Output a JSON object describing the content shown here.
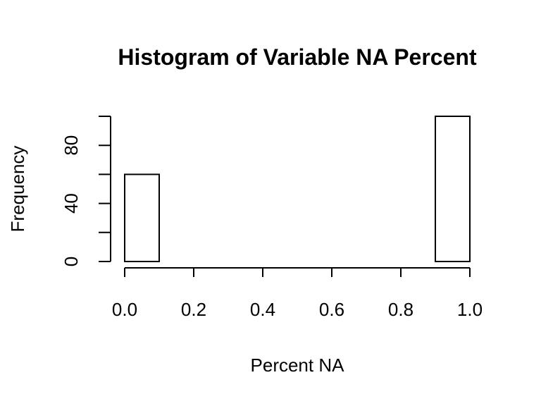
{
  "chart_data": {
    "type": "bar",
    "title": "Histogram of Variable NA Percent",
    "xlabel": "Percent NA",
    "ylabel": "Frequency",
    "bins": [
      [
        0.0,
        0.1
      ],
      [
        0.1,
        0.2
      ],
      [
        0.2,
        0.3
      ],
      [
        0.3,
        0.4
      ],
      [
        0.4,
        0.5
      ],
      [
        0.5,
        0.6
      ],
      [
        0.6,
        0.7
      ],
      [
        0.7,
        0.8
      ],
      [
        0.8,
        0.9
      ],
      [
        0.9,
        1.0
      ]
    ],
    "values": [
      60,
      0,
      0,
      0,
      0,
      0,
      0,
      0,
      0,
      100
    ],
    "xlim": [
      0,
      1
    ],
    "ylim": [
      0,
      100
    ],
    "x_ticks": [
      0.0,
      0.2,
      0.4,
      0.6,
      0.8,
      1.0
    ],
    "x_tick_labels": [
      "0.0",
      "0.2",
      "0.4",
      "0.6",
      "0.8",
      "1.0"
    ],
    "y_ticks": [
      0,
      20,
      40,
      60,
      80,
      100
    ],
    "y_tick_labels": [
      "0",
      "",
      "40",
      "",
      "80",
      ""
    ],
    "grid": false,
    "bar_fill": "#ffffff",
    "bar_stroke": "#000000"
  }
}
